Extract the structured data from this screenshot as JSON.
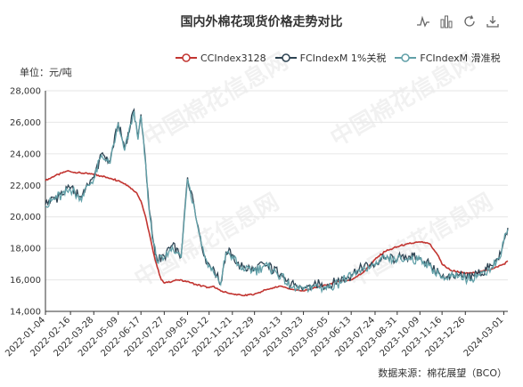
{
  "title": "国内外棉花现货价格走势对比",
  "unit_label": "单位：元/吨",
  "source_label": "数据来源：棉花展望（BCO）",
  "watermark": "中国棉花信息网",
  "toolbox": [
    "line-chart-icon",
    "bar-chart-icon",
    "restore-icon",
    "save-image-icon"
  ],
  "colors": {
    "cc": "#c23531",
    "fc1": "#2f4554",
    "fc2": "#61a0a8",
    "grid": "#e6e6e6",
    "axis": "#333333"
  },
  "chart_data": {
    "type": "line",
    "ylim": [
      14000,
      28000
    ],
    "yticks": [
      14000,
      16000,
      18000,
      20000,
      22000,
      24000,
      26000,
      28000
    ],
    "ytick_labels": [
      "14,000",
      "16,000",
      "18,000",
      "20,000",
      "22,000",
      "24,000",
      "26,000",
      "28,000"
    ],
    "x_range": [
      "2022-01-04",
      "2024-03-08"
    ],
    "x_tick_labels": [
      "2022-01-04",
      "2022-02-16",
      "2022-03-28",
      "2022-05-09",
      "2022-06-17",
      "2022-07-27",
      "2022-09-05",
      "2022-10-12",
      "2022-11-21",
      "2022-12-29",
      "2023-02-13",
      "2023-03-23",
      "2023-05-05",
      "2023-06-13",
      "2023-07-24",
      "2023-08-31",
      "2023-10-09",
      "2023-11-16",
      "2023-12-26",
      "2024-03-01"
    ],
    "grid": "horizontal",
    "legend_position": "top-center",
    "series": [
      {
        "name": "CCIndex3128",
        "points": [
          [
            "2022-01-04",
            22300
          ],
          [
            "2022-01-20",
            22600
          ],
          [
            "2022-02-10",
            22900
          ],
          [
            "2022-03-01",
            22800
          ],
          [
            "2022-03-28",
            22700
          ],
          [
            "2022-04-20",
            22500
          ],
          [
            "2022-05-09",
            22300
          ],
          [
            "2022-05-25",
            22000
          ],
          [
            "2022-06-10",
            21500
          ],
          [
            "2022-06-17",
            21000
          ],
          [
            "2022-06-25",
            20000
          ],
          [
            "2022-07-01",
            19000
          ],
          [
            "2022-07-08",
            17800
          ],
          [
            "2022-07-15",
            16800
          ],
          [
            "2022-07-22",
            16000
          ],
          [
            "2022-07-27",
            15800
          ],
          [
            "2022-08-20",
            16000
          ],
          [
            "2022-09-05",
            15900
          ],
          [
            "2022-09-20",
            15700
          ],
          [
            "2022-10-12",
            15500
          ],
          [
            "2022-10-20",
            15600
          ],
          [
            "2022-11-01",
            15300
          ],
          [
            "2022-11-21",
            15100
          ],
          [
            "2022-12-10",
            15000
          ],
          [
            "2022-12-29",
            15100
          ],
          [
            "2023-01-20",
            15400
          ],
          [
            "2023-02-13",
            15600
          ],
          [
            "2023-03-01",
            15400
          ],
          [
            "2023-03-23",
            15300
          ],
          [
            "2023-04-10",
            15500
          ],
          [
            "2023-05-05",
            15700
          ],
          [
            "2023-05-20",
            15900
          ],
          [
            "2023-06-13",
            16000
          ],
          [
            "2023-07-01",
            16400
          ],
          [
            "2023-07-24",
            17300
          ],
          [
            "2023-08-10",
            17800
          ],
          [
            "2023-08-31",
            18100
          ],
          [
            "2023-09-20",
            18300
          ],
          [
            "2023-10-09",
            18400
          ],
          [
            "2023-10-25",
            18300
          ],
          [
            "2023-11-10",
            17500
          ],
          [
            "2023-11-16",
            17000
          ],
          [
            "2023-12-01",
            16600
          ],
          [
            "2023-12-26",
            16400
          ],
          [
            "2024-01-20",
            16500
          ],
          [
            "2024-02-10",
            16700
          ],
          [
            "2024-03-01",
            17000
          ],
          [
            "2024-03-08",
            17200
          ]
        ]
      },
      {
        "name": "FCIndexM 1%关税",
        "points": [
          [
            "2022-01-04",
            20800
          ],
          [
            "2022-01-20",
            21200
          ],
          [
            "2022-02-16",
            21800
          ],
          [
            "2022-03-05",
            21300
          ],
          [
            "2022-03-28",
            22500
          ],
          [
            "2022-04-10",
            24000
          ],
          [
            "2022-04-25",
            23500
          ],
          [
            "2022-05-09",
            26000
          ],
          [
            "2022-05-20",
            24300
          ],
          [
            "2022-06-05",
            26800
          ],
          [
            "2022-06-12",
            25000
          ],
          [
            "2022-06-17",
            26500
          ],
          [
            "2022-06-25",
            23500
          ],
          [
            "2022-07-01",
            20500
          ],
          [
            "2022-07-08",
            18500
          ],
          [
            "2022-07-15",
            17200
          ],
          [
            "2022-07-27",
            17500
          ],
          [
            "2022-08-10",
            18200
          ],
          [
            "2022-08-25",
            17500
          ],
          [
            "2022-09-05",
            22500
          ],
          [
            "2022-09-15",
            21000
          ],
          [
            "2022-09-25",
            19000
          ],
          [
            "2022-10-05",
            17500
          ],
          [
            "2022-10-12",
            17000
          ],
          [
            "2022-10-25",
            16300
          ],
          [
            "2022-11-01",
            15800
          ],
          [
            "2022-11-10",
            17800
          ],
          [
            "2022-11-21",
            17600
          ],
          [
            "2022-12-05",
            16800
          ],
          [
            "2022-12-29",
            16700
          ],
          [
            "2023-01-15",
            17000
          ],
          [
            "2023-02-13",
            16400
          ],
          [
            "2023-03-01",
            15600
          ],
          [
            "2023-03-23",
            15500
          ],
          [
            "2023-04-10",
            15700
          ],
          [
            "2023-05-05",
            15600
          ],
          [
            "2023-05-20",
            15900
          ],
          [
            "2023-06-13",
            16300
          ],
          [
            "2023-07-01",
            16800
          ],
          [
            "2023-07-24",
            17000
          ],
          [
            "2023-08-10",
            17400
          ],
          [
            "2023-08-31",
            17300
          ],
          [
            "2023-09-20",
            17500
          ],
          [
            "2023-10-09",
            17400
          ],
          [
            "2023-10-25",
            17000
          ],
          [
            "2023-11-10",
            16500
          ],
          [
            "2023-11-16",
            16200
          ],
          [
            "2023-12-01",
            16300
          ],
          [
            "2023-12-26",
            16200
          ],
          [
            "2024-01-20",
            16400
          ],
          [
            "2024-02-10",
            16900
          ],
          [
            "2024-02-25",
            17600
          ],
          [
            "2024-03-01",
            18500
          ],
          [
            "2024-03-08",
            19300
          ]
        ]
      },
      {
        "name": "FCIndexM 滑准税",
        "points": [
          [
            "2022-01-04",
            20700
          ],
          [
            "2022-01-20",
            21100
          ],
          [
            "2022-02-16",
            21700
          ],
          [
            "2022-03-05",
            21200
          ],
          [
            "2022-03-28",
            22400
          ],
          [
            "2022-04-10",
            23900
          ],
          [
            "2022-04-25",
            23400
          ],
          [
            "2022-05-09",
            25900
          ],
          [
            "2022-05-20",
            24200
          ],
          [
            "2022-06-05",
            26700
          ],
          [
            "2022-06-12",
            24900
          ],
          [
            "2022-06-17",
            26400
          ],
          [
            "2022-06-25",
            23400
          ],
          [
            "2022-07-01",
            20400
          ],
          [
            "2022-07-08",
            18400
          ],
          [
            "2022-07-15",
            17100
          ],
          [
            "2022-07-27",
            17400
          ],
          [
            "2022-08-10",
            18100
          ],
          [
            "2022-08-25",
            17400
          ],
          [
            "2022-09-05",
            22400
          ],
          [
            "2022-09-15",
            20900
          ],
          [
            "2022-09-25",
            18900
          ],
          [
            "2022-10-05",
            17400
          ],
          [
            "2022-10-12",
            16900
          ],
          [
            "2022-10-25",
            16200
          ],
          [
            "2022-11-01",
            15700
          ],
          [
            "2022-11-10",
            17700
          ],
          [
            "2022-11-21",
            17500
          ],
          [
            "2022-12-05",
            16700
          ],
          [
            "2022-12-29",
            16600
          ],
          [
            "2023-01-15",
            16900
          ],
          [
            "2023-02-13",
            16300
          ],
          [
            "2023-03-01",
            15500
          ],
          [
            "2023-03-23",
            15400
          ],
          [
            "2023-04-10",
            15600
          ],
          [
            "2023-05-05",
            15500
          ],
          [
            "2023-05-20",
            15800
          ],
          [
            "2023-06-13",
            16200
          ],
          [
            "2023-07-01",
            16700
          ],
          [
            "2023-07-24",
            16900
          ],
          [
            "2023-08-10",
            17300
          ],
          [
            "2023-08-31",
            17200
          ],
          [
            "2023-09-20",
            17400
          ],
          [
            "2023-10-09",
            17300
          ],
          [
            "2023-10-25",
            16900
          ],
          [
            "2023-11-10",
            16400
          ],
          [
            "2023-11-16",
            16100
          ],
          [
            "2023-12-01",
            16200
          ],
          [
            "2023-12-26",
            16100
          ],
          [
            "2024-01-20",
            16300
          ],
          [
            "2024-02-10",
            16800
          ],
          [
            "2024-02-25",
            17500
          ],
          [
            "2024-03-01",
            18400
          ],
          [
            "2024-03-08",
            19200
          ]
        ]
      }
    ]
  }
}
